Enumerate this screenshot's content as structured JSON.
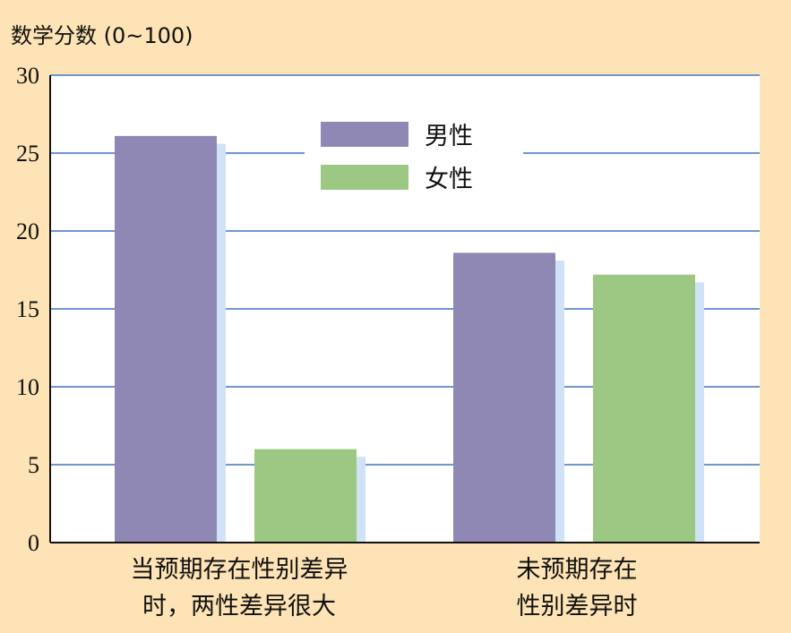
{
  "chart_data": {
    "type": "bar",
    "ylabel": "数学分数 (0~100)",
    "ylim": [
      0,
      30
    ],
    "yticks": [
      0,
      5,
      10,
      15,
      20,
      25,
      30
    ],
    "categories": [
      [
        "当预期存在性别差异",
        "时，两性差异很大"
      ],
      [
        "未预期存在",
        "性别差异时"
      ]
    ],
    "series": [
      {
        "name": "男性",
        "color": "#9088b4",
        "values": [
          26.1,
          18.6
        ]
      },
      {
        "name": "女性",
        "color": "#9dc883",
        "values": [
          6.0,
          17.2
        ]
      }
    ],
    "shadow_color": "#cfe2f6",
    "grid": true,
    "grid_color": "#6f95cf",
    "legend_position": "top-center"
  }
}
